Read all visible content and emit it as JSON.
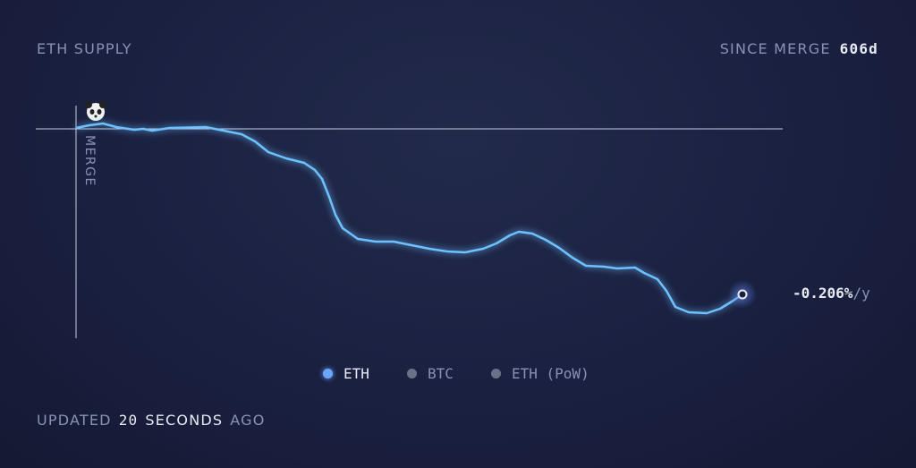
{
  "header": {
    "title": "ETH SUPPLY",
    "since_label": "SINCE MERGE",
    "since_value": "606d"
  },
  "chart": {
    "merge_label": "MERGE",
    "rate": {
      "value": "-0.206%",
      "unit": "/y"
    }
  },
  "legend": {
    "items": [
      "ETH",
      "BTC",
      "ETH (PoW)"
    ]
  },
  "footer": {
    "parts": [
      "UPDATED",
      "20",
      "SECONDS",
      "AGO"
    ]
  }
}
